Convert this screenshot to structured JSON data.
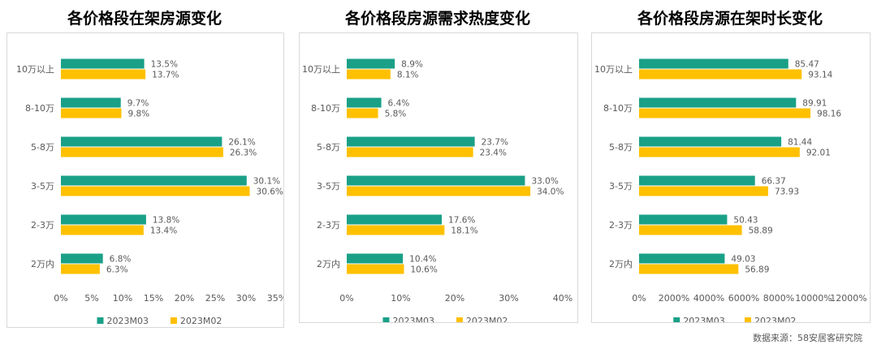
{
  "source": "数据来源：58安居客研究院",
  "colors": {
    "primary": "#1aa087",
    "secondary": "#ffc000"
  },
  "chart_data": [
    {
      "type": "bar",
      "title": "各价格段在架房源变化",
      "categories": [
        "10万以上",
        "8-10万",
        "5-8万",
        "3-5万",
        "2-3万",
        "2万内"
      ],
      "series": [
        {
          "name": "2023M03",
          "values": [
            13.5,
            9.7,
            26.1,
            30.1,
            13.8,
            6.8
          ],
          "labels": [
            "13.5%",
            "9.7%",
            "26.1%",
            "30.1%",
            "13.8%",
            "6.8%"
          ]
        },
        {
          "name": "2023M02",
          "values": [
            13.7,
            9.8,
            26.3,
            30.6,
            13.4,
            6.3
          ],
          "labels": [
            "13.7%",
            "9.8%",
            "26.3%",
            "30.6%",
            "13.4%",
            "6.3%"
          ]
        }
      ],
      "xlim": [
        0,
        35
      ],
      "ticks": [
        0,
        5,
        10,
        15,
        20,
        25,
        30,
        35
      ],
      "tick_labels": [
        "0%",
        "5%",
        "10%",
        "15%",
        "20%",
        "25%",
        "30%",
        "35%"
      ],
      "legend": "bottom",
      "grid": false
    },
    {
      "type": "bar",
      "title": "各价格段房源需求热度变化",
      "categories": [
        "10万以上",
        "8-10万",
        "5-8万",
        "3-5万",
        "2-3万",
        "2万内"
      ],
      "series": [
        {
          "name": "2023M03",
          "values": [
            8.9,
            6.4,
            23.7,
            33.0,
            17.6,
            10.4
          ],
          "labels": [
            "8.9%",
            "6.4%",
            "23.7%",
            "33.0%",
            "17.6%",
            "10.4%"
          ]
        },
        {
          "name": "2023M02",
          "values": [
            8.1,
            5.8,
            23.4,
            34.0,
            18.1,
            10.6
          ],
          "labels": [
            "8.1%",
            "5.8%",
            "23.4%",
            "34.0%",
            "18.1%",
            "10.6%"
          ]
        }
      ],
      "xlim": [
        0,
        40
      ],
      "ticks": [
        0,
        10,
        20,
        30,
        40
      ],
      "tick_labels": [
        "0%",
        "10%",
        "20%",
        "30%",
        "40%"
      ],
      "legend": "bottom",
      "grid": false
    },
    {
      "type": "bar",
      "title": "各价格段房源在架时长变化",
      "categories": [
        "10万以上",
        "8-10万",
        "5-8万",
        "3-5万",
        "2-3万",
        "2万内"
      ],
      "series": [
        {
          "name": "2023M03",
          "values": [
            85.47,
            89.91,
            81.44,
            66.37,
            50.43,
            49.03
          ],
          "labels": [
            "85.47",
            "89.91",
            "81.44",
            "66.37",
            "50.43",
            "49.03"
          ]
        },
        {
          "name": "2023M02",
          "values": [
            93.14,
            98.16,
            92.01,
            73.93,
            58.89,
            56.89
          ],
          "labels": [
            "93.14",
            "98.16",
            "92.01",
            "73.93",
            "58.89",
            "56.89"
          ]
        }
      ],
      "xlim": [
        0,
        120
      ],
      "ticks": [
        0,
        20,
        40,
        60,
        80,
        100,
        120
      ],
      "tick_labels": [
        "0%",
        "2000%",
        "4000%",
        "6000%",
        "8000%",
        "10000%",
        "12000%"
      ],
      "legend": "bottom",
      "grid": false
    }
  ]
}
